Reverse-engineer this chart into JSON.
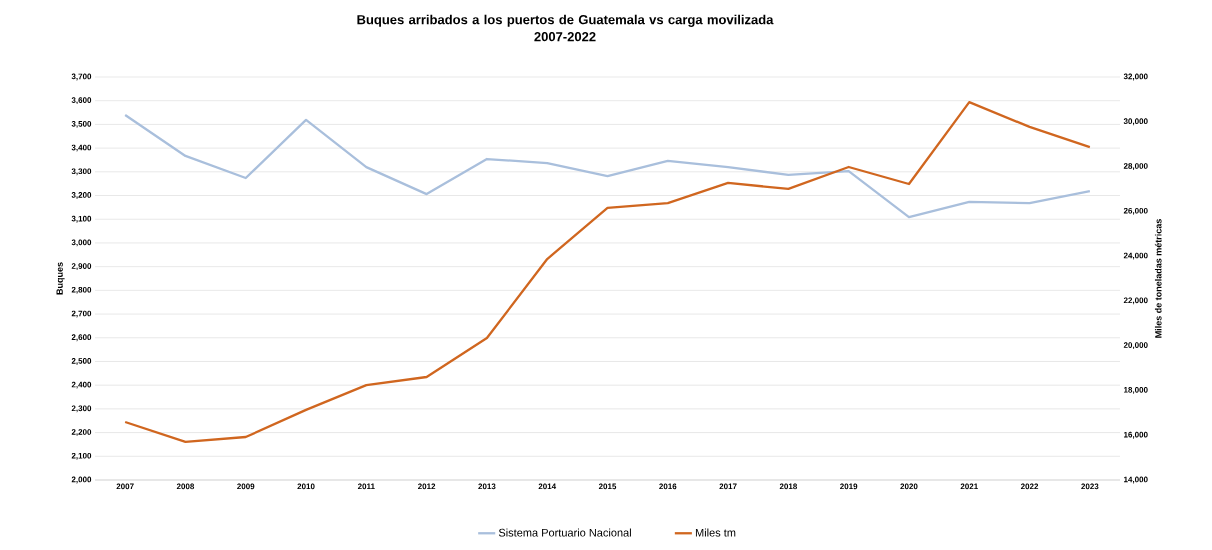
{
  "chart_data": {
    "type": "line",
    "title": "Buques arribados a los puertos de Guatemala vs carga movilizada\n2007-2022",
    "ylabel": "Buques",
    "y2label": "Miles de toneladas métricas",
    "categories": [
      "2007",
      "2008",
      "2009",
      "2010",
      "2011",
      "2012",
      "2013",
      "2014",
      "2015",
      "2016",
      "2017",
      "2018",
      "2019",
      "2020",
      "2021",
      "2022",
      "2023"
    ],
    "series": [
      {
        "name": "Sistema Portuario Nacional",
        "color": "#a9bfdc",
        "values": [
          3540,
          3367,
          3274,
          3519,
          3320,
          3206,
          3354,
          3337,
          3282,
          3346,
          3320,
          3287,
          3303,
          3109,
          3173,
          3168,
          3219
        ]
      },
      {
        "name": "Miles tm",
        "color": "#d0661f",
        "axis": "y2",
        "values": [
          16590,
          15700,
          15920,
          17130,
          18240,
          18600,
          20340,
          23870,
          26150,
          26370,
          27270,
          27000,
          27980,
          27220,
          30880,
          29770,
          28870
        ]
      }
    ],
    "ylim": [
      2000,
      3700
    ],
    "yticks": [
      {
        "value": 2000,
        "label": "2,000"
      },
      {
        "value": 2100,
        "label": "2,100"
      },
      {
        "value": 2200,
        "label": "2,200"
      },
      {
        "value": 2300,
        "label": "2,300"
      },
      {
        "value": 2400,
        "label": "2,400"
      },
      {
        "value": 2500,
        "label": "2,500"
      },
      {
        "value": 2600,
        "label": "2,600"
      },
      {
        "value": 2700,
        "label": "2,700"
      },
      {
        "value": 2800,
        "label": "2,800"
      },
      {
        "value": 2900,
        "label": "2,900"
      },
      {
        "value": 3000,
        "label": "3,000"
      },
      {
        "value": 3100,
        "label": "3,100"
      },
      {
        "value": 3200,
        "label": "3,200"
      },
      {
        "value": 3300,
        "label": "3,300"
      },
      {
        "value": 3400,
        "label": "3,400"
      },
      {
        "value": 3500,
        "label": "3,500"
      },
      {
        "value": 3600,
        "label": "3,600"
      },
      {
        "value": 3700,
        "label": "3,700"
      }
    ],
    "y2lim": [
      14000,
      32000
    ],
    "y2ticks": [
      {
        "value": 14000,
        "label": "14,000"
      },
      {
        "value": 16000,
        "label": "16,000"
      },
      {
        "value": 18000,
        "label": "18,000"
      },
      {
        "value": 20000,
        "label": "20,000"
      },
      {
        "value": 22000,
        "label": "22,000"
      },
      {
        "value": 24000,
        "label": "24,000"
      },
      {
        "value": 26000,
        "label": "26,000"
      },
      {
        "value": 28000,
        "label": "28,000"
      },
      {
        "value": 30000,
        "label": "30,000"
      },
      {
        "value": 32000,
        "label": "32,000"
      }
    ],
    "grid": "y",
    "legend": "bottom",
    "marker": "none",
    "line_style": "solid"
  }
}
